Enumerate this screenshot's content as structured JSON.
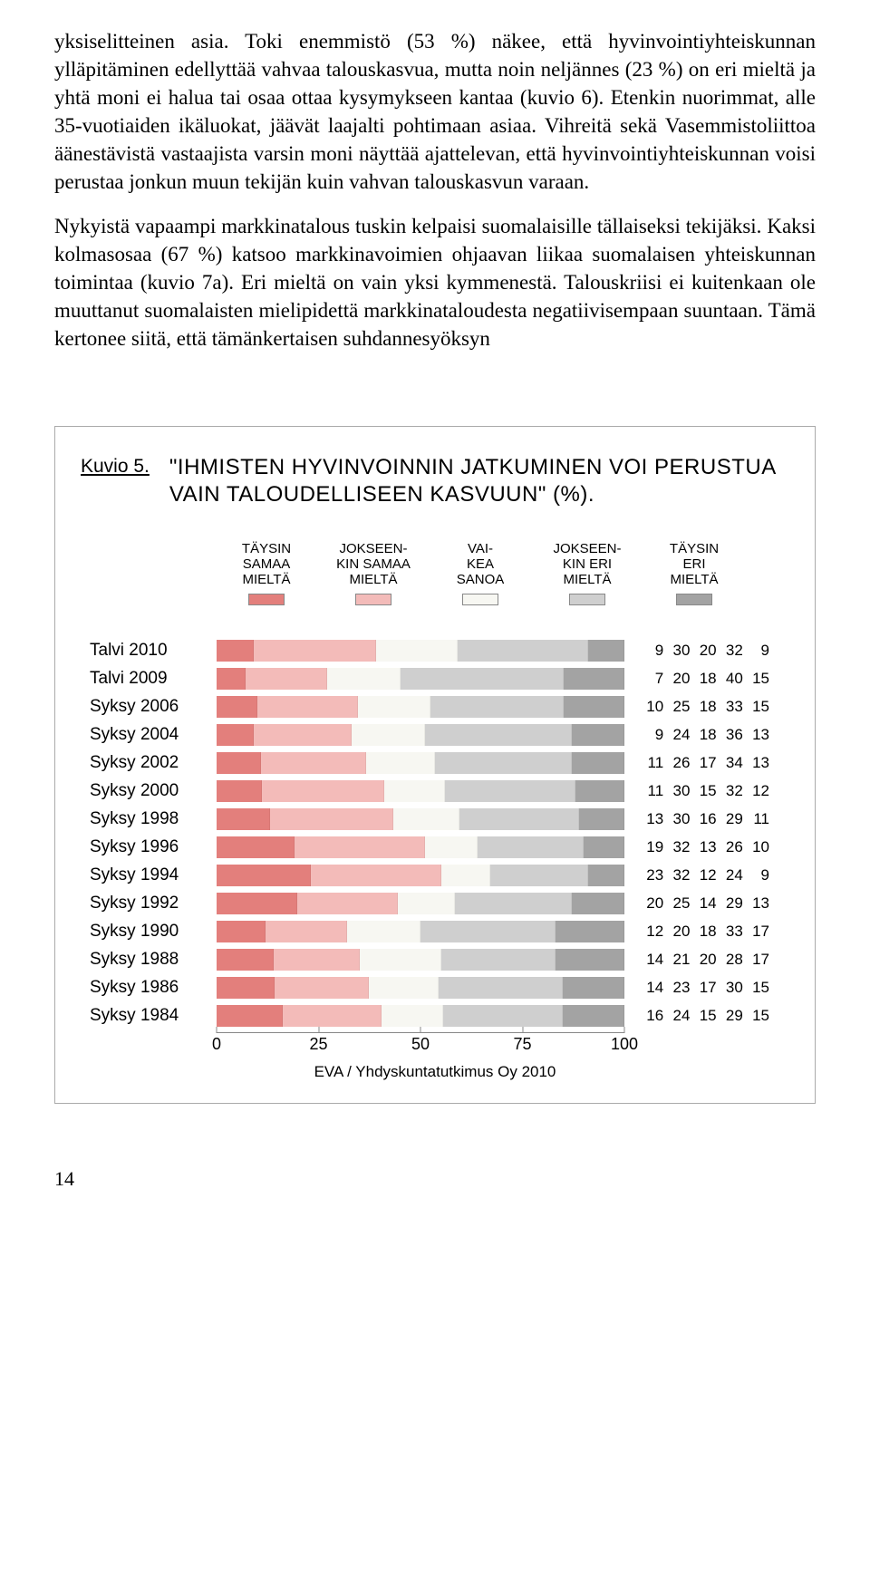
{
  "paragraphs": [
    "yksiselitteinen asia. Toki enemmistö (53 %) näkee, että hyvinvointiyhteiskunnan ylläpitäminen edellyttää vahvaa talouskasvua, mutta noin neljännes (23 %) on eri mieltä ja yhtä moni ei halua tai osaa ottaa kysymykseen kantaa (kuvio 6). Etenkin nuorimmat, alle 35-vuotiaiden ikäluokat, jäävät laajalti pohtimaan asiaa. Vihreitä sekä Vasemmistoliittoa äänestävistä vastaajista varsin moni näyttää ajattelevan, että hyvinvointiyhteiskunnan voisi perustaa jonkun muun tekijän kuin vahvan talouskasvun varaan.",
    "Nykyistä vapaampi markkinatalous tuskin kelpaisi suomalaisille tällaiseksi tekijäksi. Kaksi kolmasosaa (67 %) katsoo markkinavoimien ohjaavan liikaa suomalaisen yhteiskunnan toimintaa (kuvio 7a). Eri mieltä on vain yksi kymmenestä. Talouskriisi ei kuitenkaan ole muuttanut suomalaisten mielipidettä markkinataloudesta negatiivisempaan suuntaan. Tämä kertonee siitä, että tämänkertaisen suhdannesyöksyn"
  ],
  "figure": {
    "number": "Kuvio 5.",
    "title": "\"IHMISTEN HYVINVOINNIN JATKUMINEN VOI PERUSTUA VAIN TALOUDELLISEEN KASVUUN\" (%).",
    "legend": [
      {
        "label": "TÄYSIN\nSAMAA\nMIELTÄ",
        "color": "#e37f7c"
      },
      {
        "label": "JOKSEEN-\nKIN SAMAA\nMIELTÄ",
        "color": "#f3bbb9"
      },
      {
        "label": "VAI-\nKEA\nSANOA",
        "color": "#f7f7f2"
      },
      {
        "label": "JOKSEEN-\nKIN ERI\nMIELTÄ",
        "color": "#cfcfcf"
      },
      {
        "label": "TÄYSIN\nERI\nMIELTÄ",
        "color": "#a3a3a3"
      }
    ],
    "colors": [
      "#e37f7c",
      "#f3bbb9",
      "#f7f7f2",
      "#cfcfcf",
      "#a3a3a3"
    ],
    "rows": [
      {
        "label": "Talvi 2010",
        "values": [
          9,
          30,
          20,
          32,
          9
        ]
      },
      {
        "label": "Talvi 2009",
        "values": [
          7,
          20,
          18,
          40,
          15
        ]
      },
      {
        "label": "Syksy 2006",
        "values": [
          10,
          25,
          18,
          33,
          15
        ]
      },
      {
        "label": "Syksy 2004",
        "values": [
          9,
          24,
          18,
          36,
          13
        ]
      },
      {
        "label": "Syksy 2002",
        "values": [
          11,
          26,
          17,
          34,
          13
        ]
      },
      {
        "label": "Syksy 2000",
        "values": [
          11,
          30,
          15,
          32,
          12
        ]
      },
      {
        "label": "Syksy 1998",
        "values": [
          13,
          30,
          16,
          29,
          11
        ]
      },
      {
        "label": "Syksy 1996",
        "values": [
          19,
          32,
          13,
          26,
          10
        ]
      },
      {
        "label": "Syksy 1994",
        "values": [
          23,
          32,
          12,
          24,
          9
        ]
      },
      {
        "label": "Syksy 1992",
        "values": [
          20,
          25,
          14,
          29,
          13
        ]
      },
      {
        "label": "Syksy 1990",
        "values": [
          12,
          20,
          18,
          33,
          17
        ]
      },
      {
        "label": "Syksy 1988",
        "values": [
          14,
          21,
          20,
          28,
          17
        ]
      },
      {
        "label": "Syksy 1986",
        "values": [
          14,
          23,
          17,
          30,
          15
        ]
      },
      {
        "label": "Syksy 1984",
        "values": [
          16,
          24,
          15,
          29,
          15
        ]
      }
    ],
    "axis": {
      "ticks": [
        0,
        25,
        50,
        75,
        100
      ]
    },
    "source": "EVA / Yhdyskuntatutkimus Oy 2010"
  },
  "page_number": "14"
}
